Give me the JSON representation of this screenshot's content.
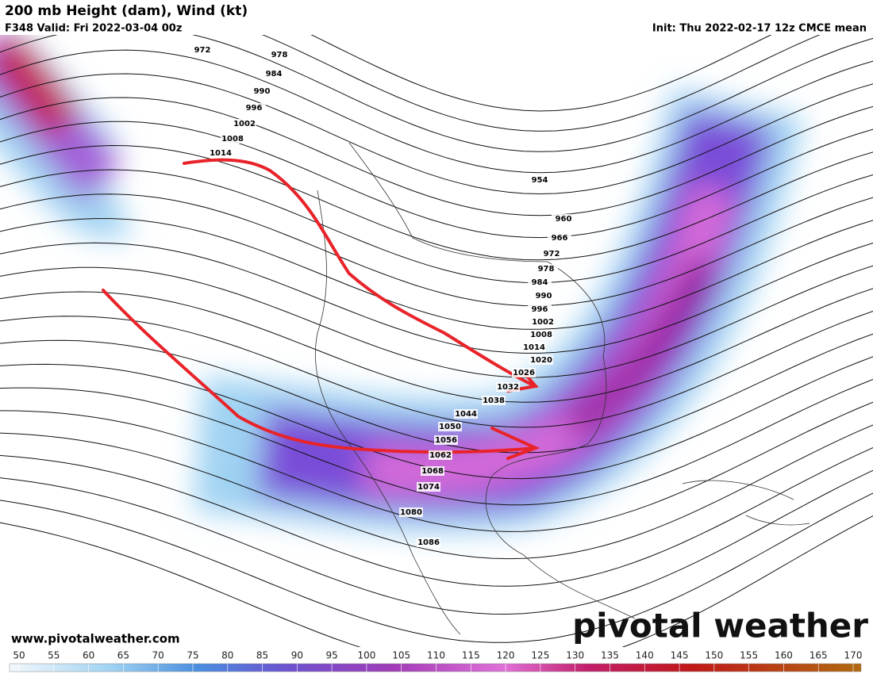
{
  "header": {
    "title": "200 mb Height (dam), Wind (kt)",
    "valid": "F348 Valid: Fri 2022-03-04 00z",
    "init": "Init: Thu 2022-02-17 12z CMCE mean"
  },
  "contour_labels": [
    "972",
    "978",
    "984",
    "990",
    "996",
    "1002",
    "1008",
    "1014",
    "954",
    "960",
    "966",
    "972",
    "978",
    "984",
    "990",
    "996",
    "1002",
    "1008",
    "1014",
    "1020",
    "1026",
    "1032",
    "1038",
    "1044",
    "1050",
    "1056",
    "1062",
    "1068",
    "1074",
    "1080",
    "1086"
  ],
  "colorbar": {
    "ticks": [
      50,
      55,
      60,
      65,
      70,
      75,
      80,
      85,
      90,
      95,
      100,
      105,
      110,
      115,
      120,
      125,
      130,
      135,
      140,
      145,
      150,
      155,
      160,
      165,
      170
    ]
  },
  "footer": {
    "website": "www.pivotalweather.com",
    "logo": "pivotal weather"
  }
}
